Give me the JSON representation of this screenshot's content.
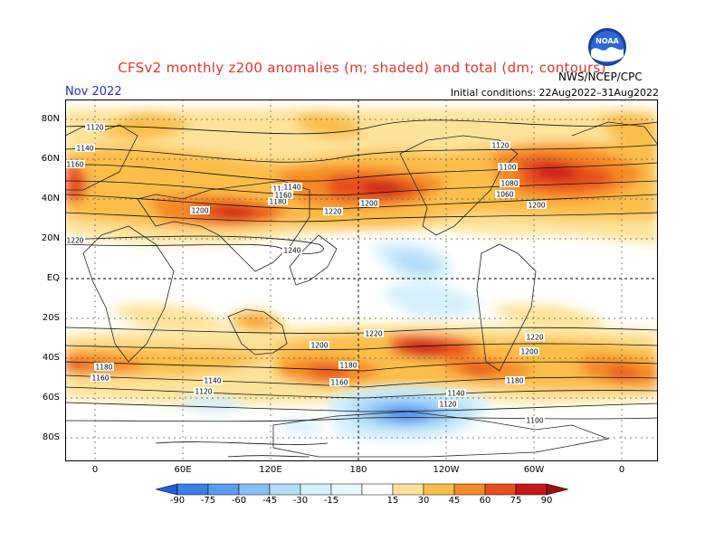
{
  "header": {
    "title": "CFSv2 monthly z200 anomalies (m; shaded) and total (dm; contours)",
    "period": "Nov 2022",
    "agency": "NWS/NCEP/CPC",
    "initial_conditions": "Initial conditions: 22Aug2022–31Aug2022",
    "logo_text": "NOAA"
  },
  "map": {
    "lat_labels": [
      "80N",
      "60N",
      "40N",
      "20N",
      "EQ",
      "20S",
      "40S",
      "60S",
      "80S"
    ],
    "lon_labels": [
      "0",
      "60E",
      "120E",
      "180",
      "120W",
      "60W",
      "0"
    ],
    "contour_labels": [
      "1120",
      "1140",
      "1160",
      "1180",
      "1200",
      "1220",
      "1240",
      "1200",
      "1220",
      "1180",
      "1160",
      "1140",
      "1120",
      "1100",
      "1080",
      "1060",
      "1180",
      "1160",
      "1140",
      "1120",
      "1200",
      "1180",
      "1160",
      "1140",
      "1220",
      "1180",
      "1120",
      "1100",
      "1220",
      "1200",
      "1200"
    ]
  },
  "colorbar": {
    "labels": [
      "-90",
      "-75",
      "-60",
      "-45",
      "-30",
      "-15",
      "15",
      "30",
      "45",
      "60",
      "75",
      "90"
    ],
    "colors": [
      "#1f5fdc",
      "#3c7ee6",
      "#5a9df0",
      "#86bff4",
      "#b2dcf8",
      "#d4f0fb",
      "#ffffff",
      "#fde39a",
      "#fbbe4a",
      "#f68a26",
      "#e84e1c",
      "#c8161b",
      "#9c0d10"
    ]
  }
}
